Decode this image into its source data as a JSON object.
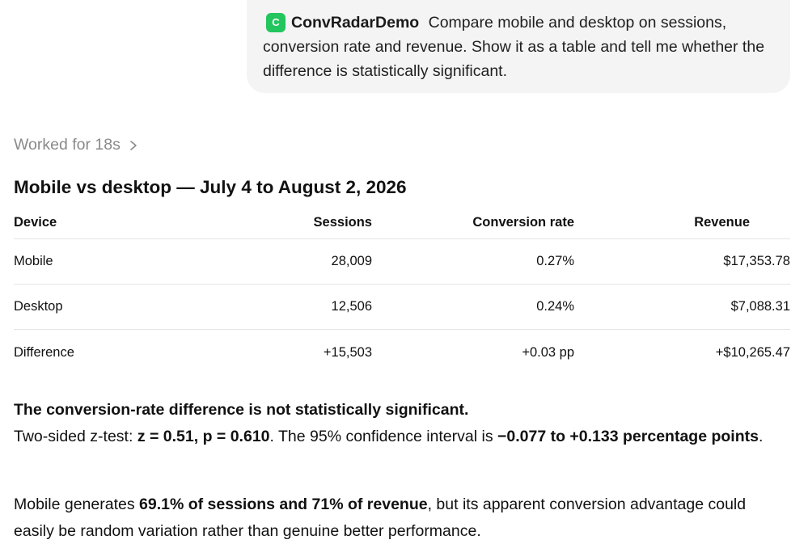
{
  "user_message": {
    "app_badge_letter": "C",
    "app_name": "ConvRadarDemo",
    "text": "Compare mobile and desktop on sessions, conversion rate and revenue. Show it as a table and tell me whether the difference is statistically significant."
  },
  "worked_for": "Worked for 18s",
  "heading": "Mobile vs desktop — July 4 to August 2, 2026",
  "table": {
    "headers": [
      "Device",
      "Sessions",
      "Conversion rate",
      "Revenue"
    ],
    "rows": [
      [
        "Mobile",
        "28,009",
        "0.27%",
        "$17,353.78"
      ],
      [
        "Desktop",
        "12,506",
        "0.24%",
        "$7,088.31"
      ],
      [
        "Difference",
        "+15,503",
        "+0.03 pp",
        "+$10,265.47"
      ]
    ]
  },
  "significance": {
    "title": "The conversion-rate difference is not statistically significant.",
    "test_prefix": "Two-sided z-test: ",
    "test_stats": "z = 0.51, p = 0.610",
    "ci_prefix": ". The 95% confidence interval is ",
    "ci_range": "−0.077 to +0.133 percentage points",
    "ci_suffix": "."
  },
  "summary": {
    "prefix": "Mobile generates ",
    "highlight": "69.1% of sessions and 71% of revenue",
    "suffix": ", but its apparent conversion advantage could easily be random variation rather than genuine better performance."
  },
  "colors": {
    "badge": "#22c55e",
    "bubble_bg": "#f4f4f4",
    "muted_text": "#8a8a8a"
  }
}
